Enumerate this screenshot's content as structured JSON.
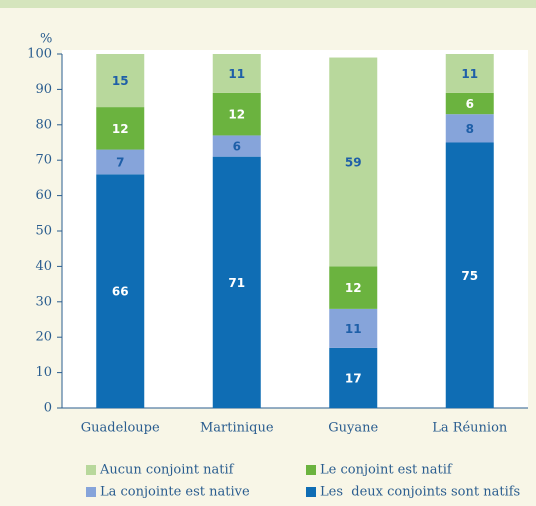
{
  "chart_data": {
    "type": "stacked_bar",
    "y_unit": "%",
    "categories": [
      "Guadeloupe",
      "Martinique",
      "Guyane",
      "La Réunion"
    ],
    "series": [
      {
        "name": "Les  deux conjoints sont natifs",
        "color": "#0f6db4",
        "label_color": "#ffffff",
        "values": [
          66,
          71,
          17,
          75
        ]
      },
      {
        "name": "La conjointe est native",
        "color": "#86a4da",
        "label_color": "#1e5fa8",
        "values": [
          7,
          6,
          11,
          8
        ]
      },
      {
        "name": "Le conjoint est natif",
        "color": "#6bb33f",
        "label_color": "#ffffff",
        "values": [
          12,
          12,
          12,
          6
        ]
      },
      {
        "name": "Aucun conjoint natif",
        "color": "#b8d89c",
        "label_color": "#1e5fa8",
        "values": [
          15,
          11,
          59,
          11
        ]
      }
    ],
    "ylim": [
      0,
      100
    ],
    "yticks": [
      0,
      10,
      20,
      30,
      40,
      50,
      60,
      70,
      80,
      90,
      100
    ]
  }
}
